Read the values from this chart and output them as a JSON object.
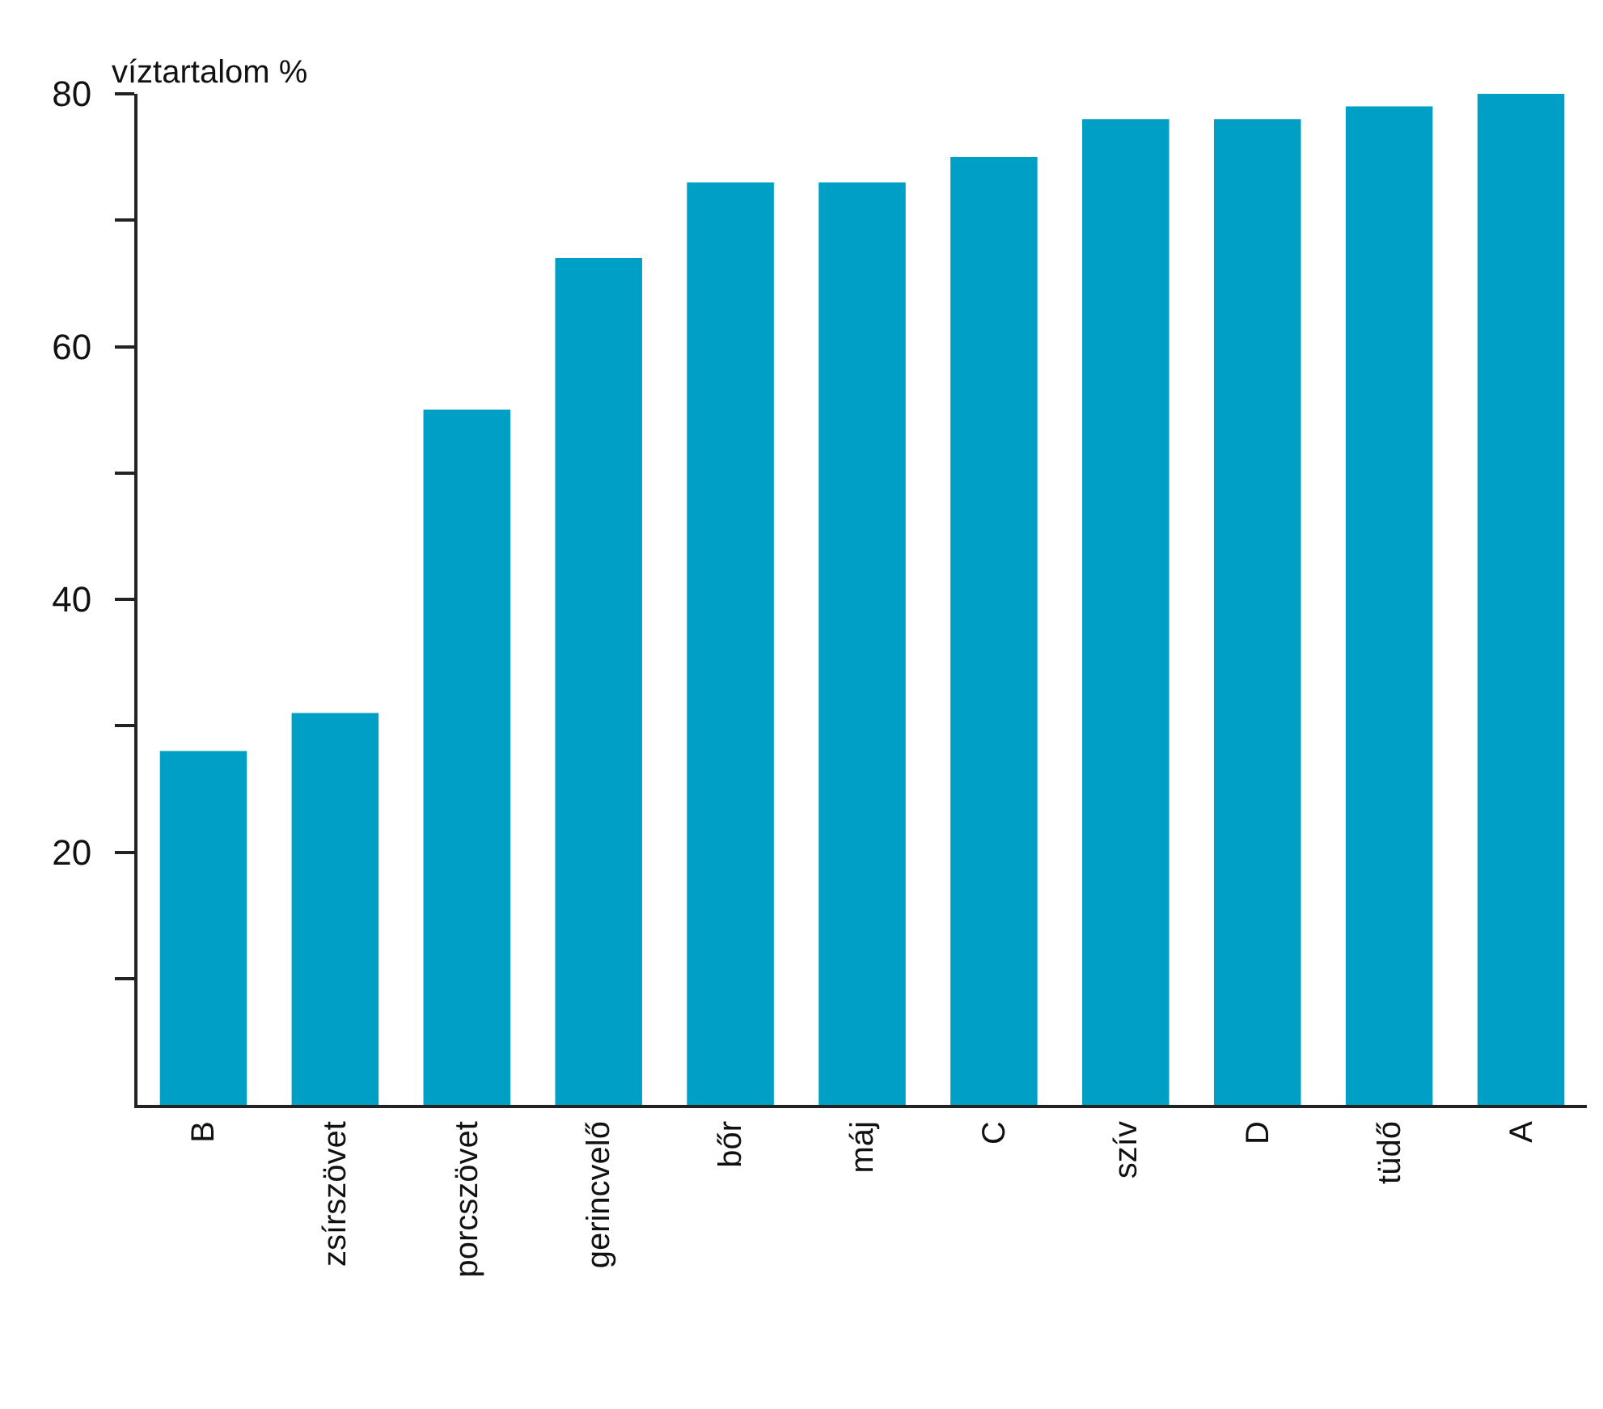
{
  "chart_data": {
    "type": "bar",
    "ylabel": "víztartalom %",
    "categories": [
      "B",
      "zsírszövet",
      "porcszövet",
      "gerincvelő",
      "bőr",
      "máj",
      "C",
      "szív",
      "D",
      "tüdő",
      "A"
    ],
    "values": [
      28,
      31,
      55,
      67,
      73,
      73,
      75,
      78,
      78,
      79,
      80
    ],
    "color": "#00a0c6",
    "ylim": [
      0,
      80
    ],
    "yticks": [
      {
        "value": 10,
        "label": null
      },
      20,
      {
        "value": 30,
        "label": null
      },
      40,
      {
        "value": 50,
        "label": null
      },
      60,
      {
        "value": 70,
        "label": null
      },
      80
    ],
    "grid": false
  }
}
